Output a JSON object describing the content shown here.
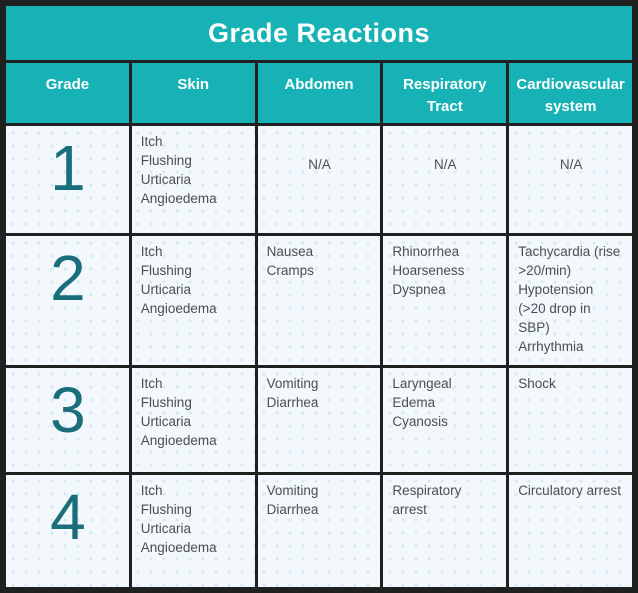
{
  "header": {
    "title": "Grade Reactions"
  },
  "colors": {
    "teal_header": "#16b2b6",
    "grade_digit": "#1a6e7a",
    "grid_border": "#1f2020",
    "cell_background": "#f2f8fc",
    "cell_dot_pattern": "#d9e9f5",
    "body_text": "#4a4f54",
    "header_text": "#ffffff"
  },
  "chart_data": {
    "type": "table",
    "title": "Grade Reactions",
    "columns": [
      "Grade",
      "Skin",
      "Abdomen",
      "Respiratory Tract",
      "Cardiovascular system"
    ],
    "rows": [
      [
        "1",
        "Itch\nFlushing\nUrticaria\nAngioedema",
        "N/A",
        "N/A",
        "N/A"
      ],
      [
        "2",
        "Itch\nFlushing\nUrticaria\nAngioedema",
        "Nausea\nCramps",
        "Rhinorrhea\nHoarseness\nDyspnea",
        "Tachycardia (rise\n>20/min)\nHypotension\n(>20 drop in SBP)\nArrhythmia"
      ],
      [
        "3",
        "Itch\nFlushing\nUrticaria\nAngioedema",
        "Vomiting\nDiarrhea",
        "Laryngeal\nEdema\nCyanosis",
        "Shock"
      ],
      [
        "4",
        "Itch\nFlushing\nUrticaria\nAngioedema",
        "Vomiting\nDiarrhea",
        "Respiratory\narrest",
        "Circulatory arrest"
      ]
    ]
  }
}
